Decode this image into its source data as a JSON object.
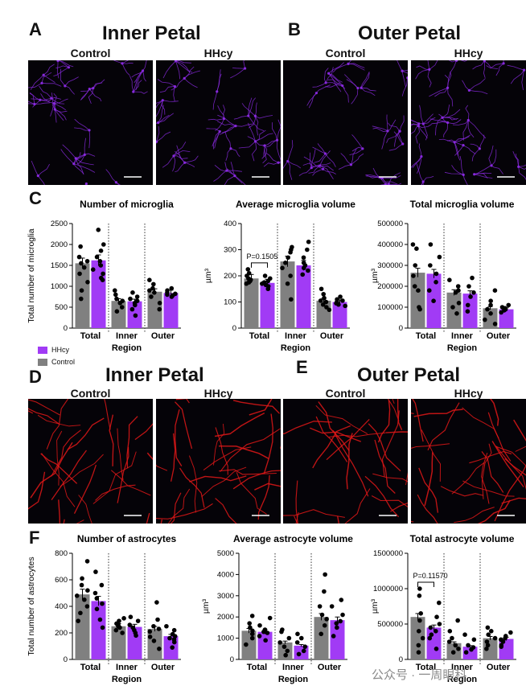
{
  "panels": {
    "A": {
      "letter": "A",
      "title": "Inner Petal"
    },
    "B": {
      "letter": "B",
      "title": "Outer Petal"
    },
    "C": {
      "letter": "C"
    },
    "D": {
      "letter": "D",
      "title": "Inner Petal"
    },
    "E": {
      "letter": "E",
      "title": "Outer Petal"
    },
    "F": {
      "letter": "F"
    }
  },
  "conditions": {
    "control": "Control",
    "hhcy": "HHcy"
  },
  "legend": {
    "hhcy": "HHcy",
    "control": "Control"
  },
  "colors": {
    "control": "#808080",
    "hhcy": "#a13bf5",
    "microglia": "#8b2be2",
    "astro": "#e01818"
  },
  "watermark": "公众号 · 一周眼科",
  "chart_data": [
    {
      "id": "c1",
      "type": "bar",
      "title": "Number of microglia",
      "ylabel": "Total number of microglia",
      "xlabel": "Region",
      "categories": [
        "Total",
        "Inner",
        "Outer"
      ],
      "ylim": [
        0,
        2500
      ],
      "ticks": [
        0,
        500,
        1000,
        1500,
        2000,
        2500
      ],
      "tick_labels": [
        "0",
        "500",
        "1000",
        "1500",
        "2000",
        "2500"
      ],
      "series": [
        {
          "name": "Control",
          "values": [
            1550,
            650,
            870
          ]
        },
        {
          "name": "HHcy",
          "values": [
            1620,
            640,
            840
          ]
        }
      ],
      "points": [
        [
          [
            1950,
            1700,
            1600,
            1550,
            1450,
            1300,
            1100,
            900,
            700
          ],
          [
            2350,
            2000,
            1850,
            1700,
            1600,
            1500,
            1400,
            1300,
            1200,
            1150
          ]
        ],
        [
          [
            900,
            800,
            700,
            650,
            600,
            500,
            400
          ],
          [
            850,
            750,
            700,
            650,
            600,
            550,
            450,
            300
          ]
        ],
        [
          [
            1150,
            1050,
            950,
            900,
            850,
            750,
            600,
            450
          ],
          [
            950,
            900,
            850,
            820,
            800,
            780,
            750
          ]
        ]
      ],
      "annotation": null
    },
    {
      "id": "c2",
      "type": "bar",
      "title": "Average microglia volume",
      "ylabel": "µm³",
      "xlabel": "Region",
      "categories": [
        "Total",
        "Inner",
        "Outer"
      ],
      "ylim": [
        0,
        400
      ],
      "ticks": [
        0,
        100,
        200,
        300,
        400
      ],
      "tick_labels": [
        "0",
        "100",
        "200",
        "300",
        "400"
      ],
      "series": [
        {
          "name": "Control",
          "values": [
            190,
            255,
            105
          ]
        },
        {
          "name": "HHcy",
          "values": [
            173,
            240,
            100
          ]
        }
      ],
      "points": [
        [
          [
            225,
            210,
            200,
            190,
            185,
            180,
            175,
            170
          ],
          [
            200,
            190,
            180,
            175,
            170,
            165,
            160,
            150
          ]
        ],
        [
          [
            310,
            300,
            290,
            270,
            250,
            230,
            200,
            170,
            110
          ],
          [
            330,
            300,
            270,
            250,
            240,
            230,
            220,
            205
          ]
        ],
        [
          [
            150,
            130,
            115,
            105,
            100,
            90,
            80,
            70
          ],
          [
            120,
            110,
            105,
            100,
            95,
            90,
            85
          ]
        ]
      ],
      "annotation": "P=0.1505"
    },
    {
      "id": "c3",
      "type": "bar",
      "title": "Total microglia volume",
      "ylabel": "µm³",
      "xlabel": "Region",
      "categories": [
        "Total",
        "Inner",
        "Outer"
      ],
      "ylim": [
        0,
        500000
      ],
      "ticks": [
        0,
        100000,
        200000,
        300000,
        400000,
        500000
      ],
      "tick_labels": [
        "0",
        "100000",
        "200000",
        "300000",
        "400000",
        "500000"
      ],
      "series": [
        {
          "name": "Control",
          "values": [
            265000,
            170000,
            95000
          ]
        },
        {
          "name": "HHcy",
          "values": [
            260000,
            165000,
            90000
          ]
        }
      ],
      "points": [
        [
          [
            400000,
            380000,
            300000,
            250000,
            200000,
            180000,
            100000,
            90000
          ],
          [
            400000,
            340000,
            300000,
            260000,
            220000,
            180000,
            130000
          ]
        ],
        [
          [
            230000,
            200000,
            180000,
            170000,
            120000,
            100000,
            70000
          ],
          [
            240000,
            200000,
            170000,
            150000,
            110000,
            80000
          ]
        ],
        [
          [
            180000,
            130000,
            110000,
            90000,
            70000,
            40000,
            20000
          ],
          [
            110000,
            100000,
            95000,
            90000,
            85000,
            75000
          ]
        ]
      ],
      "annotation": null
    },
    {
      "id": "f1",
      "type": "bar",
      "title": "Number of astrocytes",
      "ylabel": "Total number of astrocytes",
      "xlabel": "Region",
      "categories": [
        "Total",
        "Inner",
        "Outer"
      ],
      "ylim": [
        0,
        800
      ],
      "ticks": [
        0,
        200,
        400,
        600,
        800
      ],
      "tick_labels": [
        "0",
        "200",
        "400",
        "600",
        "800"
      ],
      "series": [
        {
          "name": "Control",
          "values": [
            490,
            250,
            230
          ]
        },
        {
          "name": "HHcy",
          "values": [
            440,
            245,
            175
          ]
        }
      ],
      "points": [
        [
          [
            740,
            610,
            560,
            520,
            480,
            450,
            400,
            350,
            290
          ],
          [
            660,
            560,
            500,
            460,
            420,
            380,
            300,
            240
          ]
        ],
        [
          [
            310,
            290,
            270,
            260,
            250,
            240,
            220,
            200
          ],
          [
            320,
            290,
            260,
            240,
            220,
            200,
            180
          ]
        ],
        [
          [
            430,
            300,
            250,
            230,
            210,
            170,
            140,
            80
          ],
          [
            250,
            220,
            190,
            175,
            160,
            150,
            130,
            90
          ]
        ]
      ],
      "annotation": null
    },
    {
      "id": "f2",
      "type": "bar",
      "title": "Average astrocyte volume",
      "ylabel": "µm³",
      "xlabel": "Region",
      "categories": [
        "Total",
        "Inner",
        "Outer"
      ],
      "ylim": [
        0,
        5000
      ],
      "ticks": [
        0,
        1000,
        2000,
        3000,
        4000,
        5000
      ],
      "tick_labels": [
        "0",
        "1000",
        "2000",
        "3000",
        "4000",
        "5000"
      ],
      "series": [
        {
          "name": "Control",
          "values": [
            1350,
            800,
            2000
          ]
        },
        {
          "name": "HHcy",
          "values": [
            1300,
            650,
            1850
          ]
        }
      ],
      "points": [
        [
          [
            2050,
            1700,
            1500,
            1350,
            1200,
            1000,
            700
          ],
          [
            1950,
            1600,
            1400,
            1300,
            1250,
            1100,
            900
          ]
        ],
        [
          [
            1400,
            1300,
            1000,
            800,
            600,
            400,
            200
          ],
          [
            1200,
            1000,
            800,
            600,
            400,
            250
          ]
        ],
        [
          [
            4000,
            3200,
            2500,
            2100,
            1900,
            1600,
            1200
          ],
          [
            2800,
            2500,
            2100,
            1800,
            1700,
            1500,
            1100
          ]
        ]
      ],
      "annotation": null
    },
    {
      "id": "f3",
      "type": "bar",
      "title": "Total astrocyte volume",
      "ylabel": "µm³",
      "xlabel": "Region",
      "categories": [
        "Total",
        "Inner",
        "Outer"
      ],
      "ylim": [
        0,
        1500000
      ],
      "ticks": [
        0,
        500000,
        1000000,
        1500000
      ],
      "tick_labels": [
        "0",
        "500000",
        "1000000",
        "1500000"
      ],
      "series": [
        {
          "name": "Control",
          "values": [
            600000,
            230000,
            300000
          ]
        },
        {
          "name": "HHcy",
          "values": [
            450000,
            180000,
            290000
          ]
        }
      ],
      "points": [
        [
          [
            1000000,
            900000,
            650000,
            550000,
            400000,
            300000,
            200000,
            100000
          ],
          [
            800000,
            600000,
            500000,
            450000,
            400000,
            350000,
            300000,
            150000
          ]
        ],
        [
          [
            550000,
            400000,
            300000,
            250000,
            200000,
            150000,
            100000
          ],
          [
            350000,
            280000,
            200000,
            170000,
            140000,
            100000
          ]
        ],
        [
          [
            450000,
            400000,
            350000,
            300000,
            250000,
            200000,
            150000
          ],
          [
            380000,
            330000,
            300000,
            280000,
            250000,
            200000,
            180000
          ]
        ]
      ],
      "annotation": "P=0.11570"
    }
  ]
}
